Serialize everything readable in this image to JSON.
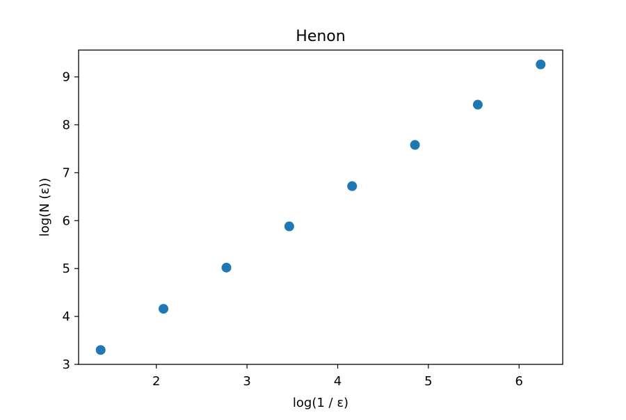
{
  "chart_data": {
    "type": "scatter",
    "title": "Henon",
    "xlabel": "log(1 / ε)",
    "ylabel": "log(N (ε))",
    "x": [
      1.386,
      2.079,
      2.773,
      3.466,
      4.159,
      4.852,
      5.545,
      6.238
    ],
    "y": [
      3.3,
      4.16,
      5.02,
      5.88,
      6.72,
      7.58,
      8.42,
      9.26
    ],
    "xlim": [
      1.143,
      6.481
    ],
    "ylim": [
      3.0,
      9.56
    ],
    "xticks": [
      2,
      3,
      4,
      5,
      6
    ],
    "yticks": [
      3,
      4,
      5,
      6,
      7,
      8,
      9
    ],
    "xtick_labels": [
      "2",
      "3",
      "4",
      "5",
      "6"
    ],
    "ytick_labels": [
      "3",
      "4",
      "5",
      "6",
      "7",
      "8",
      "9"
    ],
    "grid": false,
    "marker_color": "#1f77b4"
  }
}
